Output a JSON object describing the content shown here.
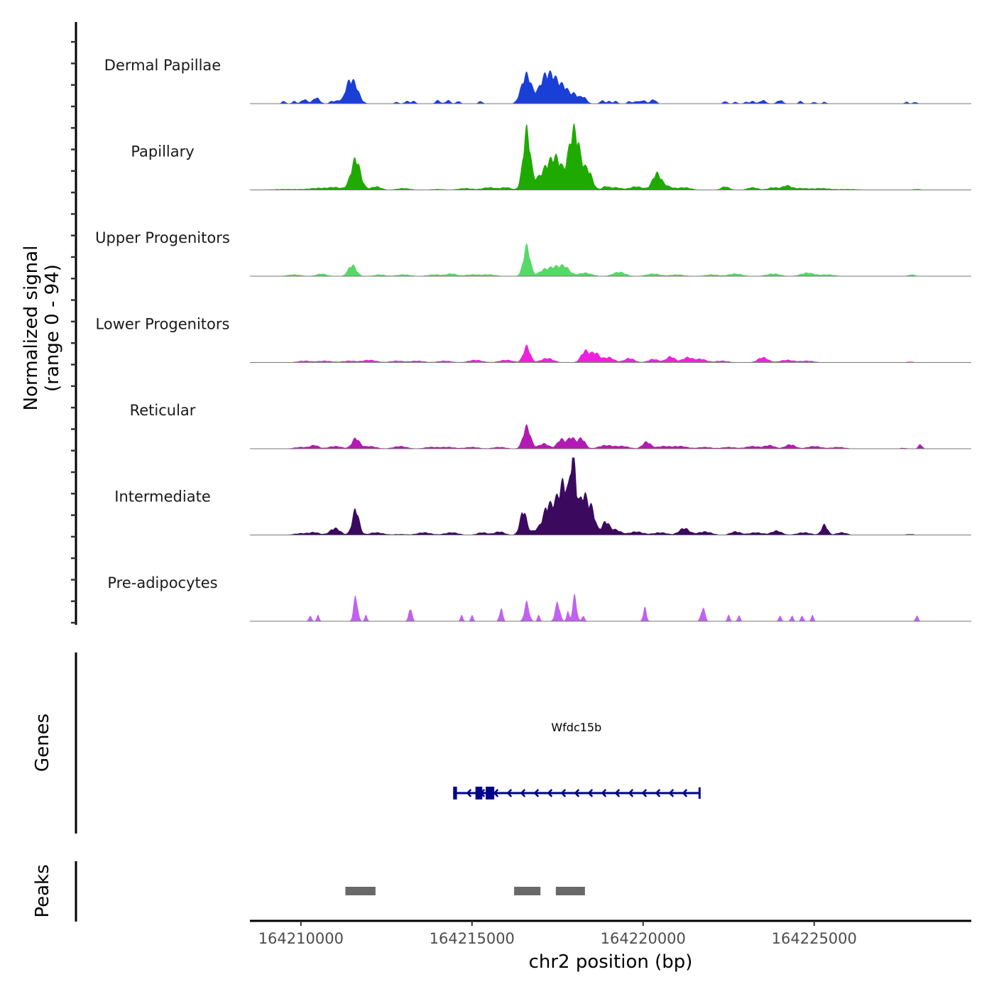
{
  "chart_data": {
    "type": "area",
    "title": "",
    "ylabel": "Normalized signal\n(range 0 - 94)",
    "ylabel_lines": [
      "Normalized signal",
      "(range 0 - 94)"
    ],
    "ylim": [
      0,
      94
    ],
    "xlabel": "chr2 position (bp)",
    "xlim": [
      164208510,
      164229590
    ],
    "xticks": [
      164210000,
      164215000,
      164220000,
      164225000
    ],
    "xtick_labels": [
      "164210000",
      "164215000",
      "164220000",
      "164225000"
    ],
    "series": [
      {
        "name": "Dermal Papillae",
        "color": "#1a3fd6",
        "peaks": [
          [
            164209500,
            3,
            60
          ],
          [
            164209800,
            3,
            60
          ],
          [
            164210100,
            5,
            90
          ],
          [
            164210450,
            7,
            100
          ],
          [
            164210900,
            3,
            70
          ],
          [
            164211100,
            4,
            80
          ],
          [
            164211550,
            23,
            140
          ],
          [
            164211400,
            11,
            90
          ],
          [
            164211300,
            6,
            70
          ],
          [
            164212800,
            2,
            60
          ],
          [
            164213100,
            3,
            70
          ],
          [
            164213300,
            3,
            60
          ],
          [
            164214000,
            4,
            70
          ],
          [
            164214300,
            4,
            70
          ],
          [
            164214600,
            3,
            60
          ],
          [
            164215250,
            3,
            60
          ],
          [
            164216400,
            3,
            80
          ],
          [
            164216600,
            34,
            140
          ],
          [
            164216900,
            6,
            90
          ],
          [
            164217100,
            26,
            120
          ],
          [
            164217300,
            20,
            120
          ],
          [
            164217500,
            21,
            150
          ],
          [
            164217750,
            13,
            120
          ],
          [
            164218000,
            10,
            100
          ],
          [
            164218250,
            8,
            100
          ],
          [
            164218800,
            4,
            60
          ],
          [
            164219000,
            3,
            60
          ],
          [
            164219200,
            3,
            60
          ],
          [
            164219600,
            3,
            60
          ],
          [
            164219800,
            3,
            60
          ],
          [
            164220000,
            4,
            80
          ],
          [
            164220300,
            5,
            80
          ],
          [
            164222400,
            3,
            60
          ],
          [
            164222700,
            2,
            60
          ],
          [
            164223000,
            2,
            60
          ],
          [
            164223200,
            3,
            70
          ],
          [
            164223500,
            4,
            90
          ],
          [
            164224000,
            4,
            90
          ],
          [
            164224600,
            3,
            60
          ],
          [
            164225000,
            2,
            60
          ],
          [
            164225300,
            2,
            60
          ],
          [
            164227700,
            2,
            60
          ],
          [
            164227950,
            2,
            60
          ]
        ]
      },
      {
        "name": "Papillary",
        "color": "#1faa00",
        "peaks": [
          [
            164209600,
            1,
            500
          ],
          [
            164210500,
            2,
            250
          ],
          [
            164211000,
            3,
            200
          ],
          [
            164211600,
            36,
            140
          ],
          [
            164212200,
            4,
            150
          ],
          [
            164213000,
            2,
            200
          ],
          [
            164214000,
            1,
            200
          ],
          [
            164214800,
            2,
            200
          ],
          [
            164215500,
            3,
            200
          ],
          [
            164216000,
            3,
            150
          ],
          [
            164216600,
            70,
            110
          ],
          [
            164216900,
            6,
            100
          ],
          [
            164217200,
            27,
            180
          ],
          [
            164217500,
            30,
            150
          ],
          [
            164217900,
            48,
            130
          ],
          [
            164218050,
            36,
            110
          ],
          [
            164218200,
            15,
            100
          ],
          [
            164218400,
            22,
            120
          ],
          [
            164218900,
            4,
            100
          ],
          [
            164219200,
            3,
            150
          ],
          [
            164219800,
            4,
            200
          ],
          [
            164220400,
            19,
            130
          ],
          [
            164220700,
            4,
            150
          ],
          [
            164221200,
            3,
            200
          ],
          [
            164222400,
            4,
            120
          ],
          [
            164223200,
            3,
            150
          ],
          [
            164223800,
            3,
            150
          ],
          [
            164224200,
            5,
            130
          ],
          [
            164224600,
            2,
            200
          ],
          [
            164225200,
            2,
            250
          ],
          [
            164226000,
            1,
            300
          ],
          [
            164228000,
            1,
            120
          ]
        ]
      },
      {
        "name": "Upper Progenitors",
        "color": "#56d966",
        "peaks": [
          [
            164209800,
            2,
            200
          ],
          [
            164210600,
            3,
            150
          ],
          [
            164211500,
            13,
            120
          ],
          [
            164212300,
            2,
            150
          ],
          [
            164213000,
            2,
            200
          ],
          [
            164213900,
            2,
            200
          ],
          [
            164214400,
            3,
            150
          ],
          [
            164215000,
            2,
            200
          ],
          [
            164215500,
            2,
            200
          ],
          [
            164216600,
            35,
            100
          ],
          [
            164217100,
            7,
            150
          ],
          [
            164217400,
            9,
            150
          ],
          [
            164217700,
            11,
            150
          ],
          [
            164218300,
            4,
            200
          ],
          [
            164219300,
            5,
            180
          ],
          [
            164220300,
            3,
            200
          ],
          [
            164221000,
            2,
            200
          ],
          [
            164222000,
            2,
            200
          ],
          [
            164222700,
            3,
            200
          ],
          [
            164223800,
            3,
            200
          ],
          [
            164224800,
            4,
            200
          ],
          [
            164225400,
            2,
            200
          ],
          [
            164227850,
            2,
            100
          ]
        ]
      },
      {
        "name": "Lower Progenitors",
        "color": "#ee22dd",
        "peaks": [
          [
            164210100,
            2,
            200
          ],
          [
            164210700,
            2,
            200
          ],
          [
            164211400,
            2,
            200
          ],
          [
            164212000,
            3,
            200
          ],
          [
            164212800,
            2,
            200
          ],
          [
            164213400,
            2,
            200
          ],
          [
            164214200,
            2,
            200
          ],
          [
            164215100,
            3,
            200
          ],
          [
            164216000,
            3,
            200
          ],
          [
            164216600,
            19,
            100
          ],
          [
            164217200,
            5,
            180
          ],
          [
            164218300,
            13,
            120
          ],
          [
            164218600,
            11,
            130
          ],
          [
            164219000,
            6,
            150
          ],
          [
            164219600,
            5,
            150
          ],
          [
            164220300,
            4,
            150
          ],
          [
            164220800,
            7,
            130
          ],
          [
            164221300,
            6,
            150
          ],
          [
            164221700,
            4,
            150
          ],
          [
            164222300,
            2,
            200
          ],
          [
            164223500,
            6,
            150
          ],
          [
            164224200,
            3,
            200
          ],
          [
            164224800,
            2,
            200
          ],
          [
            164227800,
            1,
            100
          ]
        ]
      },
      {
        "name": "Reticular",
        "color": "#b31ab3",
        "peaks": [
          [
            164210000,
            2,
            200
          ],
          [
            164210400,
            4,
            120
          ],
          [
            164211000,
            3,
            200
          ],
          [
            164211600,
            12,
            110
          ],
          [
            164212000,
            3,
            200
          ],
          [
            164212900,
            3,
            200
          ],
          [
            164213800,
            2,
            200
          ],
          [
            164214300,
            2,
            200
          ],
          [
            164215000,
            2,
            200
          ],
          [
            164215800,
            2,
            200
          ],
          [
            164216600,
            26,
            110
          ],
          [
            164217100,
            6,
            150
          ],
          [
            164217600,
            11,
            110
          ],
          [
            164217900,
            13,
            110
          ],
          [
            164218200,
            12,
            110
          ],
          [
            164218900,
            4,
            200
          ],
          [
            164219400,
            3,
            200
          ],
          [
            164220100,
            8,
            120
          ],
          [
            164220600,
            3,
            200
          ],
          [
            164221100,
            3,
            200
          ],
          [
            164221800,
            2,
            200
          ],
          [
            164222500,
            2,
            200
          ],
          [
            164223200,
            3,
            200
          ],
          [
            164223700,
            4,
            150
          ],
          [
            164224300,
            5,
            150
          ],
          [
            164225000,
            3,
            200
          ],
          [
            164225700,
            2,
            200
          ],
          [
            164227600,
            1,
            100
          ],
          [
            164228100,
            5,
            60
          ]
        ]
      },
      {
        "name": "Intermediate",
        "color": "#3b0a5e",
        "peaks": [
          [
            164210000,
            2,
            200
          ],
          [
            164210400,
            3,
            150
          ],
          [
            164211000,
            8,
            150
          ],
          [
            164211600,
            30,
            100
          ],
          [
            164212200,
            3,
            200
          ],
          [
            164212900,
            1,
            200
          ],
          [
            164213600,
            3,
            200
          ],
          [
            164214400,
            3,
            200
          ],
          [
            164215300,
            3,
            150
          ],
          [
            164215800,
            4,
            150
          ],
          [
            164216500,
            28,
            100
          ],
          [
            164216900,
            6,
            150
          ],
          [
            164217200,
            30,
            130
          ],
          [
            164217500,
            38,
            140
          ],
          [
            164217700,
            45,
            100
          ],
          [
            164217950,
            94,
            90
          ],
          [
            164218250,
            45,
            120
          ],
          [
            164218500,
            28,
            110
          ],
          [
            164218900,
            15,
            110
          ],
          [
            164219200,
            6,
            150
          ],
          [
            164219800,
            4,
            200
          ],
          [
            164220500,
            3,
            200
          ],
          [
            164221200,
            8,
            150
          ],
          [
            164221800,
            4,
            200
          ],
          [
            164222700,
            4,
            150
          ],
          [
            164223300,
            3,
            200
          ],
          [
            164223900,
            5,
            150
          ],
          [
            164224700,
            3,
            200
          ],
          [
            164225300,
            12,
            90
          ],
          [
            164225800,
            3,
            150
          ],
          [
            164227800,
            1,
            120
          ]
        ]
      },
      {
        "name": "Pre-adipocytes",
        "color": "#c061f0",
        "peaks": [
          [
            164210270,
            7,
            40
          ],
          [
            164210500,
            7,
            40
          ],
          [
            164211600,
            30,
            60
          ],
          [
            164211900,
            7,
            40
          ],
          [
            164213200,
            16,
            50
          ],
          [
            164214700,
            7,
            40
          ],
          [
            164215000,
            7,
            40
          ],
          [
            164215850,
            15,
            50
          ],
          [
            164216600,
            22,
            70
          ],
          [
            164216950,
            7,
            40
          ],
          [
            164217500,
            22,
            70
          ],
          [
            164217800,
            11,
            40
          ],
          [
            164218000,
            30,
            60
          ],
          [
            164218250,
            7,
            40
          ],
          [
            164220050,
            16,
            50
          ],
          [
            164221750,
            16,
            60
          ],
          [
            164222500,
            7,
            40
          ],
          [
            164222800,
            7,
            40
          ],
          [
            164224000,
            7,
            40
          ],
          [
            164224350,
            7,
            40
          ],
          [
            164224650,
            7,
            40
          ],
          [
            164224950,
            7,
            40
          ],
          [
            164228000,
            7,
            40
          ]
        ]
      }
    ],
    "genes": [
      {
        "name": "Wfdc15b",
        "strand": "-",
        "color": "#00008b",
        "start": 164214450,
        "end": 164221650,
        "exons": [
          [
            164214450,
            164214560
          ],
          [
            164215100,
            164215300
          ],
          [
            164215400,
            164215650
          ]
        ]
      }
    ],
    "peaks_track": {
      "label": "Peaks",
      "color": "#696969",
      "regions": [
        [
          164211300,
          164212180
        ],
        [
          164216230,
          164217000
        ],
        [
          164217450,
          164218300
        ]
      ]
    },
    "genes_track_label": "Genes"
  }
}
